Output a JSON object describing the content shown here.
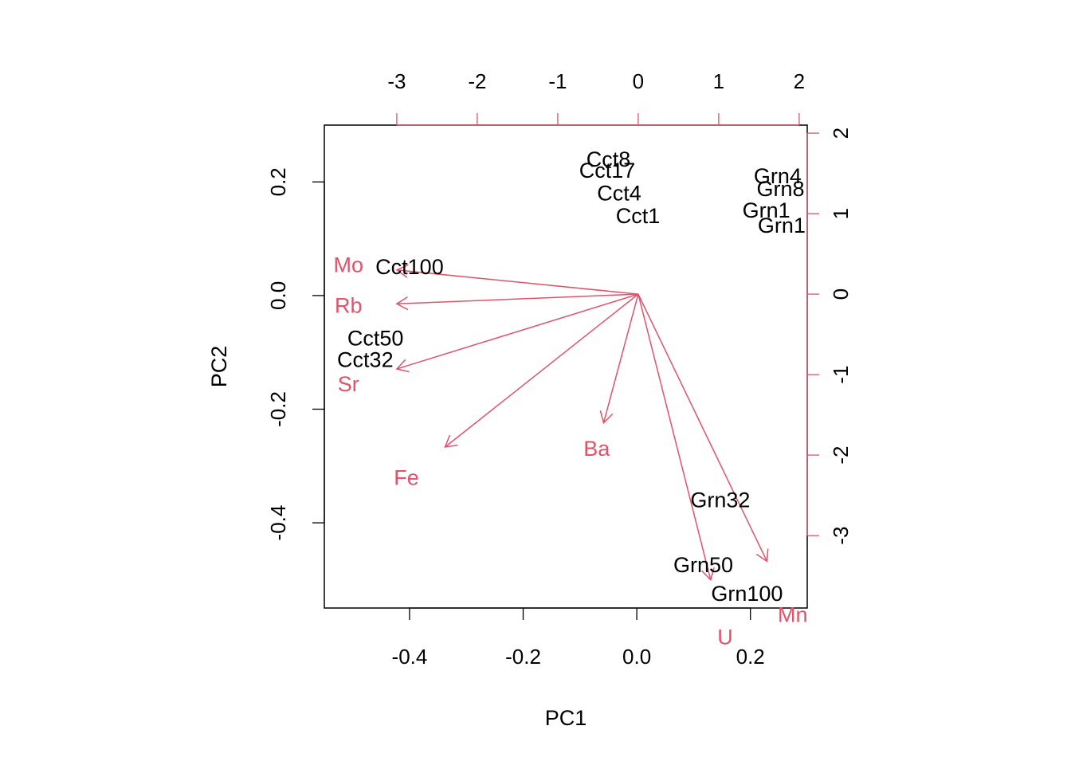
{
  "chart_data": {
    "type": "scatter",
    "subtype": "pca-biplot",
    "xlabel": "PC1",
    "ylabel": "PC2",
    "xlim": [
      -0.55,
      0.3
    ],
    "ylim": [
      -0.55,
      0.3
    ],
    "bottom_ticks": [
      "-0.4",
      "-0.2",
      "0.0",
      "0.2"
    ],
    "left_ticks": [
      "-0.4",
      "-0.2",
      "0.0",
      "0.2"
    ],
    "top_ticks": [
      "-3",
      "-2",
      "-1",
      "0",
      "1",
      "2"
    ],
    "right_ticks": [
      "-3",
      "-2",
      "-1",
      "0",
      "1",
      "2"
    ],
    "secondary_xlim": [
      -3.9,
      2.1
    ],
    "secondary_ylim": [
      -3.9,
      2.1
    ],
    "observation_color": "#000000",
    "loading_color": "#DF536B",
    "grid": false,
    "observations": [
      {
        "label": "Cct8",
        "x": -0.05,
        "y": 0.24
      },
      {
        "label": "Cct17",
        "x": -0.052,
        "y": 0.22
      },
      {
        "label": "Cct4",
        "x": -0.031,
        "y": 0.18
      },
      {
        "label": "Cct1",
        "x": 0.002,
        "y": 0.14
      },
      {
        "label": "Grn4",
        "x": 0.248,
        "y": 0.21
      },
      {
        "label": "Grn8",
        "x": 0.253,
        "y": 0.188
      },
      {
        "label": "Grn1",
        "x": 0.228,
        "y": 0.15
      },
      {
        "label": "Grn1",
        "x": 0.255,
        "y": 0.123
      },
      {
        "label": "Cct100",
        "x": -0.4,
        "y": 0.05
      },
      {
        "label": "Cct50",
        "x": -0.46,
        "y": -0.075
      },
      {
        "label": "Cct32",
        "x": -0.478,
        "y": -0.113
      },
      {
        "label": "Grn32",
        "x": 0.147,
        "y": -0.36
      },
      {
        "label": "Grn50",
        "x": 0.117,
        "y": -0.474
      },
      {
        "label": "Grn100",
        "x": 0.194,
        "y": -0.525
      }
    ],
    "loadings": [
      {
        "label": "Mo",
        "x": -3.0,
        "y": 0.3
      },
      {
        "label": "Rb",
        "x": -3.0,
        "y": -0.12
      },
      {
        "label": "Sr",
        "x": -3.0,
        "y": -0.93
      },
      {
        "label": "Fe",
        "x": -2.4,
        "y": -1.9
      },
      {
        "label": "Ba",
        "x": -0.43,
        "y": -1.6
      },
      {
        "label": "Mn",
        "x": 1.6,
        "y": -3.32
      },
      {
        "label": "U",
        "x": 0.9,
        "y": -3.55
      }
    ]
  }
}
